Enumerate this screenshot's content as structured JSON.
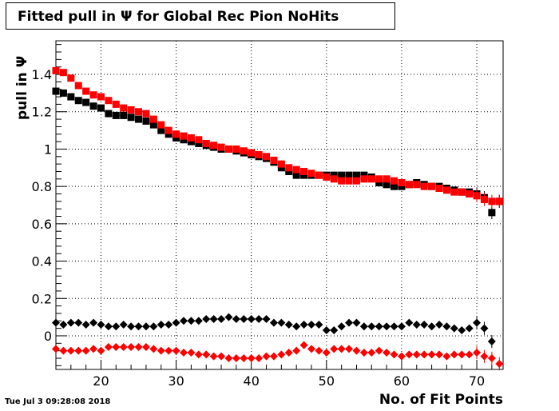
{
  "title": "Fitted pull in  Ψ  for Global Rec Pion NoHits",
  "timestamp": "Tue Jul  3 09:28:08 2018",
  "chart_data": {
    "type": "scatter",
    "title": "Fitted pull in  Ψ  for Global Rec Pion NoHits",
    "xlabel": "No. of Fit Points",
    "ylabel": "pull in  Ψ",
    "xlim": [
      14,
      73.5
    ],
    "ylim": [
      -0.18,
      1.58
    ],
    "xticks": [
      20,
      30,
      40,
      50,
      60,
      70
    ],
    "yticks": [
      0,
      0.2,
      0.4,
      0.6,
      0.8,
      1,
      1.2,
      1.4
    ],
    "ytick_labels": [
      "0",
      "0.2",
      "0.4",
      "0.6",
      "0.8",
      "1",
      "1.2",
      "1.4"
    ],
    "grid": true,
    "series": [
      {
        "marker": "square",
        "color": "#000000",
        "x": [
          14,
          15,
          16,
          17,
          18,
          19,
          20,
          21,
          22,
          23,
          24,
          25,
          26,
          27,
          28,
          29,
          30,
          31,
          32,
          33,
          34,
          35,
          36,
          37,
          38,
          39,
          40,
          41,
          42,
          43,
          44,
          45,
          46,
          47,
          48,
          49,
          50,
          51,
          52,
          53,
          54,
          55,
          56,
          57,
          58,
          59,
          60,
          61,
          62,
          63,
          64,
          65,
          66,
          67,
          68,
          69,
          70,
          71,
          72,
          73
        ],
        "y": [
          1.31,
          1.3,
          1.28,
          1.26,
          1.25,
          1.23,
          1.22,
          1.19,
          1.18,
          1.18,
          1.17,
          1.16,
          1.15,
          1.13,
          1.1,
          1.08,
          1.06,
          1.05,
          1.04,
          1.03,
          1.02,
          1.01,
          1.0,
          1.0,
          0.99,
          0.98,
          0.97,
          0.96,
          0.95,
          0.93,
          0.9,
          0.88,
          0.86,
          0.86,
          0.86,
          0.86,
          0.86,
          0.86,
          0.86,
          0.86,
          0.86,
          0.86,
          0.85,
          0.82,
          0.81,
          0.8,
          0.8,
          0.81,
          0.82,
          0.81,
          0.8,
          0.8,
          0.79,
          0.78,
          0.77,
          0.77,
          0.76,
          0.74,
          0.66,
          0.72
        ]
      },
      {
        "marker": "square",
        "color": "#ff0000",
        "x": [
          14,
          15,
          16,
          17,
          18,
          19,
          20,
          21,
          22,
          23,
          24,
          25,
          26,
          27,
          28,
          29,
          30,
          31,
          32,
          33,
          34,
          35,
          36,
          37,
          38,
          39,
          40,
          41,
          42,
          43,
          44,
          45,
          46,
          47,
          48,
          49,
          50,
          51,
          52,
          53,
          54,
          55,
          56,
          57,
          58,
          59,
          60,
          61,
          62,
          63,
          64,
          65,
          66,
          67,
          68,
          69,
          70,
          71,
          72,
          73
        ],
        "y": [
          1.42,
          1.41,
          1.38,
          1.34,
          1.31,
          1.29,
          1.28,
          1.26,
          1.24,
          1.22,
          1.21,
          1.2,
          1.19,
          1.16,
          1.13,
          1.1,
          1.08,
          1.07,
          1.06,
          1.05,
          1.03,
          1.02,
          1.01,
          1.0,
          1.0,
          0.99,
          0.98,
          0.97,
          0.96,
          0.94,
          0.92,
          0.9,
          0.89,
          0.88,
          0.87,
          0.86,
          0.85,
          0.84,
          0.83,
          0.83,
          0.83,
          0.84,
          0.84,
          0.84,
          0.84,
          0.83,
          0.82,
          0.81,
          0.81,
          0.8,
          0.8,
          0.79,
          0.78,
          0.77,
          0.77,
          0.76,
          0.75,
          0.73,
          0.72,
          0.72
        ]
      },
      {
        "marker": "diamond",
        "color": "#000000",
        "x": [
          14,
          15,
          16,
          17,
          18,
          19,
          20,
          21,
          22,
          23,
          24,
          25,
          26,
          27,
          28,
          29,
          30,
          31,
          32,
          33,
          34,
          35,
          36,
          37,
          38,
          39,
          40,
          41,
          42,
          43,
          44,
          45,
          46,
          47,
          48,
          49,
          50,
          51,
          52,
          53,
          54,
          55,
          56,
          57,
          58,
          59,
          60,
          61,
          62,
          63,
          64,
          65,
          66,
          67,
          68,
          69,
          70,
          71,
          72
        ],
        "y": [
          0.07,
          0.06,
          0.07,
          0.07,
          0.06,
          0.07,
          0.06,
          0.05,
          0.05,
          0.06,
          0.05,
          0.05,
          0.05,
          0.05,
          0.06,
          0.06,
          0.07,
          0.08,
          0.08,
          0.08,
          0.09,
          0.09,
          0.09,
          0.1,
          0.09,
          0.09,
          0.09,
          0.09,
          0.09,
          0.07,
          0.07,
          0.06,
          0.05,
          0.06,
          0.06,
          0.06,
          0.03,
          0.03,
          0.05,
          0.07,
          0.07,
          0.05,
          0.05,
          0.05,
          0.05,
          0.05,
          0.05,
          0.07,
          0.06,
          0.06,
          0.05,
          0.06,
          0.05,
          0.04,
          0.03,
          0.04,
          0.07,
          0.04,
          -0.03
        ]
      },
      {
        "marker": "diamond",
        "color": "#ff0000",
        "x": [
          14,
          15,
          16,
          17,
          18,
          19,
          20,
          21,
          22,
          23,
          24,
          25,
          26,
          27,
          28,
          29,
          30,
          31,
          32,
          33,
          34,
          35,
          36,
          37,
          38,
          39,
          40,
          41,
          42,
          43,
          44,
          45,
          46,
          47,
          48,
          49,
          50,
          51,
          52,
          53,
          54,
          55,
          56,
          57,
          58,
          59,
          60,
          61,
          62,
          63,
          64,
          65,
          66,
          67,
          68,
          69,
          70,
          71,
          72,
          73
        ],
        "y": [
          -0.07,
          -0.08,
          -0.08,
          -0.08,
          -0.08,
          -0.07,
          -0.08,
          -0.06,
          -0.06,
          -0.06,
          -0.06,
          -0.06,
          -0.06,
          -0.07,
          -0.08,
          -0.08,
          -0.08,
          -0.09,
          -0.09,
          -0.1,
          -0.1,
          -0.11,
          -0.11,
          -0.12,
          -0.12,
          -0.12,
          -0.12,
          -0.12,
          -0.11,
          -0.11,
          -0.1,
          -0.09,
          -0.08,
          -0.05,
          -0.07,
          -0.08,
          -0.09,
          -0.07,
          -0.07,
          -0.07,
          -0.08,
          -0.09,
          -0.09,
          -0.08,
          -0.09,
          -0.1,
          -0.11,
          -0.1,
          -0.1,
          -0.1,
          -0.1,
          -0.1,
          -0.11,
          -0.1,
          -0.1,
          -0.1,
          -0.09,
          -0.11,
          -0.12,
          -0.15
        ]
      }
    ]
  }
}
